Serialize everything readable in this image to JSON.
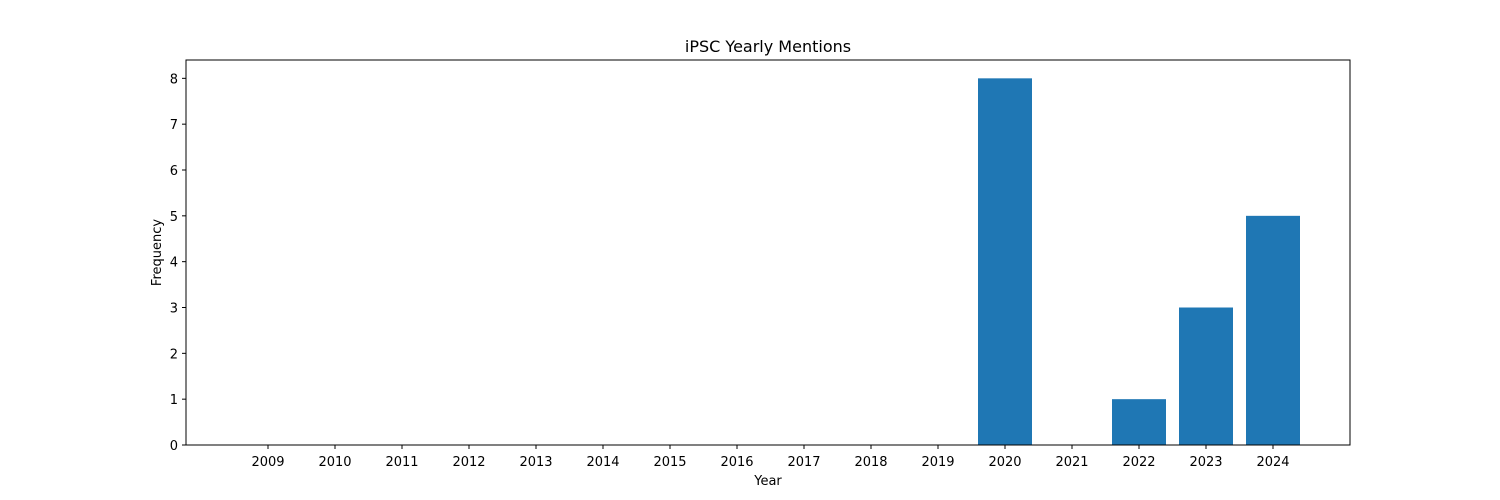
{
  "chart_data": {
    "type": "bar",
    "title": "iPSC Yearly Mentions",
    "xlabel": "Year",
    "ylabel": "Frequency",
    "categories": [
      "2009",
      "2010",
      "2011",
      "2012",
      "2013",
      "2014",
      "2015",
      "2016",
      "2017",
      "2018",
      "2019",
      "2020",
      "2021",
      "2022",
      "2023",
      "2024"
    ],
    "values": [
      0,
      0,
      0,
      0,
      0,
      0,
      0,
      0,
      0,
      0,
      0,
      8,
      0,
      1,
      3,
      5
    ],
    "ylim": [
      0,
      8.4
    ],
    "yticks": [
      "0",
      "1",
      "2",
      "3",
      "4",
      "5",
      "6",
      "7",
      "8"
    ],
    "grid": false,
    "legend": "none",
    "bar_color": "#1f77b4"
  }
}
